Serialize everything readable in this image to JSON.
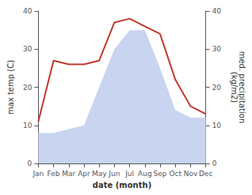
{
  "chart_data": {
    "type": "line",
    "xlabel": "date (month)",
    "ylabel": "max temp (C)",
    "y2label": "med. precipitation\n(kg/m2)",
    "categories": [
      "Jan",
      "Feb",
      "Mar",
      "Apr",
      "May",
      "Jun",
      "Jul",
      "Aug",
      "Sep",
      "Oct",
      "Nov",
      "Dec"
    ],
    "series": [
      {
        "type": "area",
        "color": "#c8d4f0",
        "axis": "y2",
        "values": [
          8,
          8,
          9,
          10,
          20,
          30,
          35,
          35,
          25,
          14,
          12,
          12
        ]
      },
      {
        "type": "line",
        "color": "#c0392b",
        "values": [
          11,
          27,
          26,
          26,
          27,
          37,
          38,
          36,
          34,
          22,
          15,
          13
        ]
      }
    ],
    "ylim": [
      0,
      40
    ],
    "yticks": [
      0,
      10,
      20,
      30,
      40
    ],
    "y2lim": [
      0,
      40
    ],
    "y2ticks": [
      0,
      10,
      20,
      30,
      40
    ],
    "grid": false
  }
}
